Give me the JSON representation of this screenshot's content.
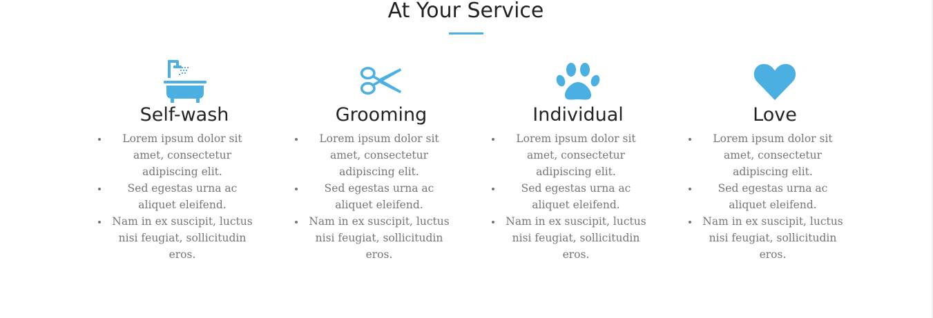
{
  "section": {
    "title": "At Your Service",
    "accent_color": "#4bafe1"
  },
  "services": [
    {
      "icon": "bathtub-icon",
      "title": "Self-wash",
      "items": [
        "Lorem ipsum dolor sit amet, consectetur adipiscing elit.",
        "Sed egestas urna ac aliquet eleifend.",
        "Nam in ex suscipit, luctus nisi feugiat, sollicitudin eros."
      ]
    },
    {
      "icon": "scissors-icon",
      "title": "Grooming",
      "items": [
        "Lorem ipsum dolor sit amet, consectetur adipiscing elit.",
        "Sed egestas urna ac aliquet eleifend.",
        "Nam in ex suscipit, luctus nisi feugiat, sollicitudin eros."
      ]
    },
    {
      "icon": "paw-icon",
      "title": "Individual",
      "items": [
        "Lorem ipsum dolor sit amet, consectetur adipiscing elit.",
        "Sed egestas urna ac aliquet eleifend.",
        "Nam in ex suscipit, luctus nisi feugiat, sollicitudin eros."
      ]
    },
    {
      "icon": "heart-icon",
      "title": "Love",
      "items": [
        "Lorem ipsum dolor sit amet, consectetur adipiscing elit.",
        "Sed egestas urna ac aliquet eleifend.",
        "Nam in ex suscipit, luctus nisi feugiat, sollicitudin eros."
      ]
    }
  ]
}
